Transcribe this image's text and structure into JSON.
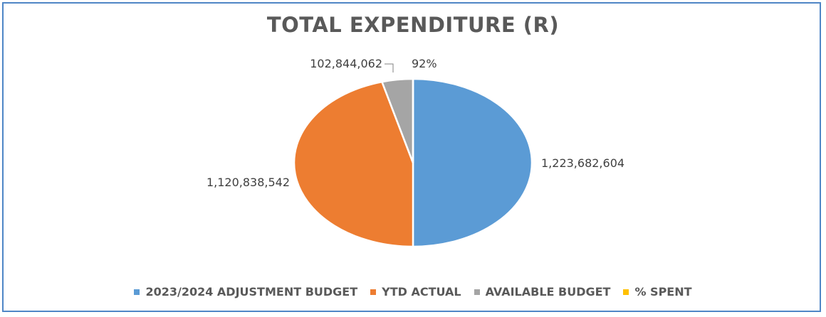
{
  "chart_data": {
    "type": "pie",
    "title": "TOTAL EXPENDITURE  (R)",
    "categories": [
      "2023/2024 ADJUSTMENT BUDGET",
      "YTD ACTUAL",
      "AVAILABLE BUDGET",
      "% SPENT"
    ],
    "values": [
      1223682604,
      1120838542,
      102844062,
      0.92
    ],
    "data_labels": [
      "1,223,682,604",
      "1,120,838,542",
      "102,844,062",
      "92%"
    ],
    "colors": [
      "#5b9bd5",
      "#ed7d31",
      "#a5a5a5",
      "#ffc000"
    ],
    "legend_position": "bottom"
  }
}
